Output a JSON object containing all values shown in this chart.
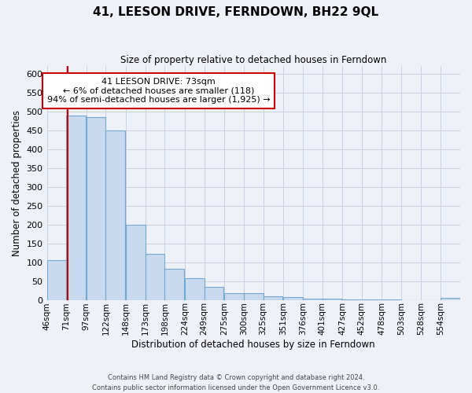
{
  "title": "41, LEESON DRIVE, FERNDOWN, BH22 9QL",
  "subtitle": "Size of property relative to detached houses in Ferndown",
  "xlabel": "Distribution of detached houses by size in Ferndown",
  "ylabel": "Number of detached properties",
  "bin_labels": [
    "46sqm",
    "71sqm",
    "97sqm",
    "122sqm",
    "148sqm",
    "173sqm",
    "198sqm",
    "224sqm",
    "249sqm",
    "275sqm",
    "300sqm",
    "325sqm",
    "351sqm",
    "376sqm",
    "401sqm",
    "427sqm",
    "452sqm",
    "478sqm",
    "503sqm",
    "528sqm",
    "554sqm"
  ],
  "bin_edges": [
    46,
    71,
    97,
    122,
    148,
    173,
    198,
    224,
    249,
    275,
    300,
    325,
    351,
    376,
    401,
    427,
    452,
    478,
    503,
    528,
    554
  ],
  "bin_width": 25,
  "bar_heights": [
    105,
    490,
    485,
    450,
    200,
    122,
    83,
    57,
    35,
    18,
    18,
    10,
    7,
    4,
    4,
    2,
    2,
    1,
    0,
    0,
    5
  ],
  "bar_color": "#c8daf0",
  "bar_edge_color": "#6fa8d0",
  "grid_color": "#c8cfe0",
  "background_color": "#eef2f8",
  "vline_x": 73,
  "vline_color": "#cc0000",
  "annotation_title": "41 LEESON DRIVE: 73sqm",
  "annotation_line1": "← 6% of detached houses are smaller (118)",
  "annotation_line2": "94% of semi-detached houses are larger (1,925) →",
  "annotation_box_color": "#ffffff",
  "annotation_box_edge": "#cc0000",
  "ylim": [
    0,
    620
  ],
  "yticks": [
    0,
    50,
    100,
    150,
    200,
    250,
    300,
    350,
    400,
    450,
    500,
    550,
    600
  ],
  "footer_line1": "Contains HM Land Registry data © Crown copyright and database right 2024.",
  "footer_line2": "Contains public sector information licensed under the Open Government Licence v3.0."
}
